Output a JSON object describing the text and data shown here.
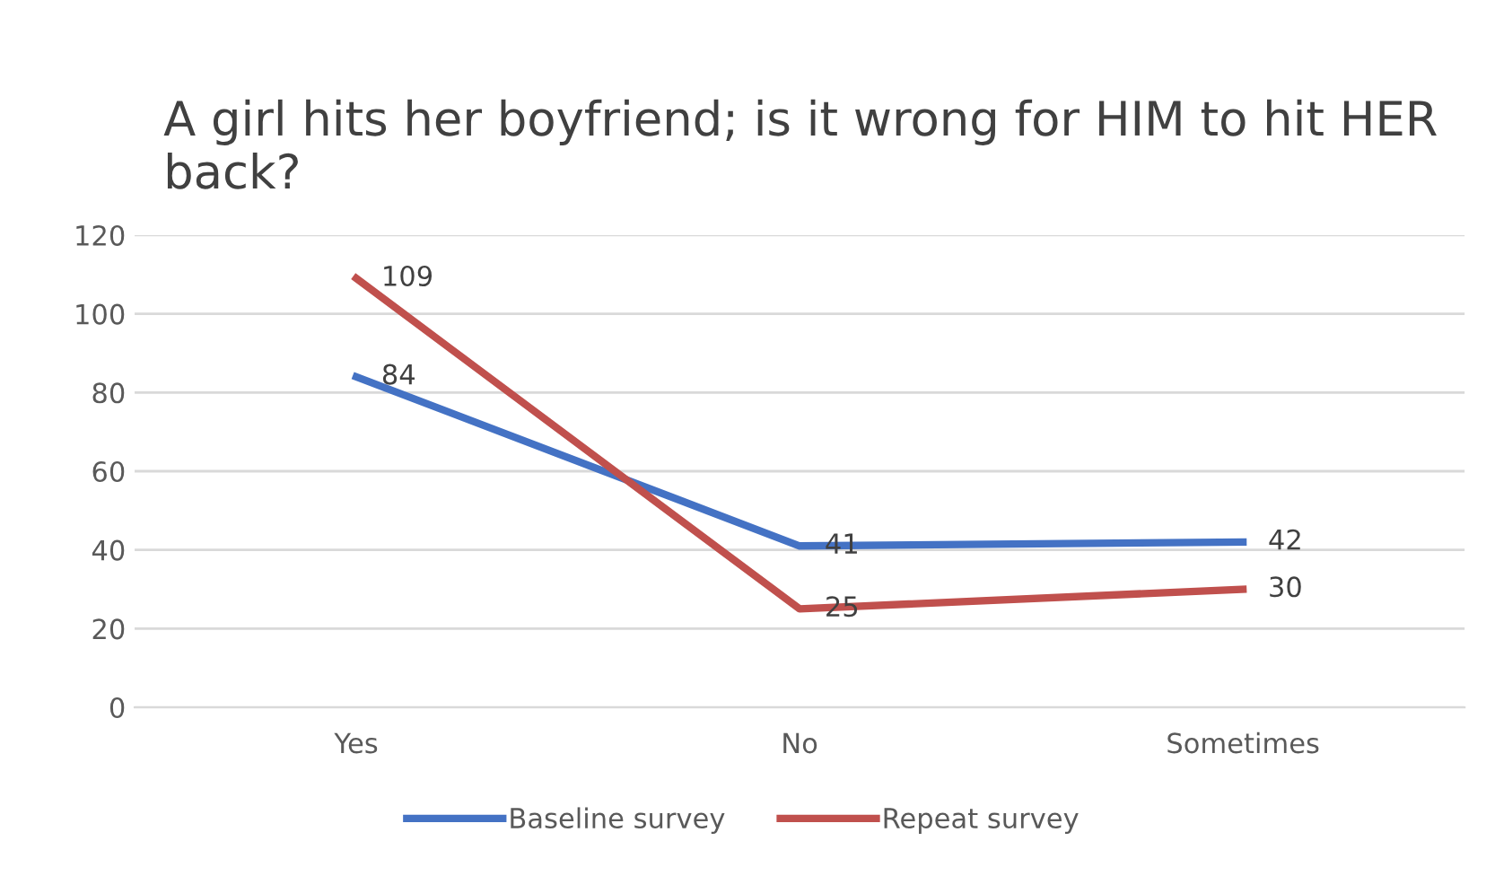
{
  "chart_data": {
    "type": "line",
    "title": "A girl hits her boyfriend; is it wrong for HIM to hit HER back?",
    "categories": [
      "Yes",
      "No",
      "Sometimes"
    ],
    "series": [
      {
        "name": "Baseline survey",
        "color": "#4472c4",
        "values": [
          84,
          41,
          42
        ]
      },
      {
        "name": "Repeat survey",
        "color": "#c0504d",
        "values": [
          109,
          25,
          30
        ]
      }
    ],
    "ylim": [
      0,
      120
    ],
    "yticks": [
      0,
      20,
      40,
      60,
      80,
      100,
      120
    ],
    "grid": "y",
    "legend": "bottom",
    "data_labels": true,
    "marker": "none",
    "line_style": "solid"
  }
}
